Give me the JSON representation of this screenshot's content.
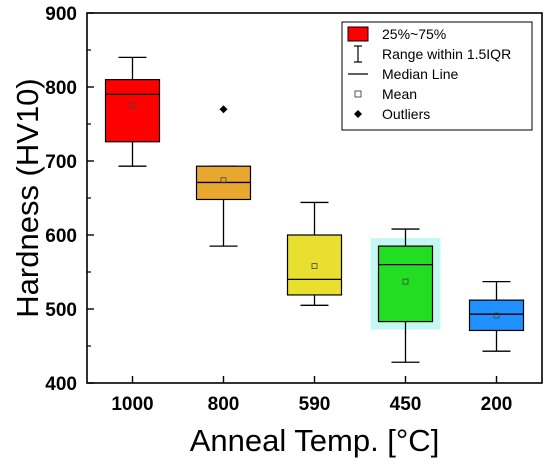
{
  "chart_data": {
    "type": "box",
    "xlabel": "Anneal Temp. [°C]",
    "ylabel": "Hardness (HV10)",
    "ylim": [
      400,
      900
    ],
    "yticks": [
      400,
      500,
      600,
      700,
      800,
      900
    ],
    "categories": [
      "1000",
      "800",
      "590",
      "450",
      "200"
    ],
    "boxes": [
      {
        "category": "1000",
        "whisker_low": 693,
        "q1": 726,
        "median": 790,
        "q3": 810,
        "whisker_high": 840,
        "mean": 775,
        "outliers": [],
        "color": "#ff0000",
        "halo": false
      },
      {
        "category": "800",
        "whisker_low": 585,
        "q1": 648,
        "median": 671,
        "q3": 693,
        "whisker_high": 693,
        "mean": 674,
        "outliers": [
          770
        ],
        "color": "#e8a830",
        "halo": false
      },
      {
        "category": "590",
        "whisker_low": 505,
        "q1": 519,
        "median": 540,
        "q3": 600,
        "whisker_high": 644,
        "mean": 558,
        "outliers": [],
        "color": "#e8df30",
        "halo": false
      },
      {
        "category": "450",
        "whisker_low": 428,
        "q1": 483,
        "median": 560,
        "q3": 585,
        "whisker_high": 608,
        "mean": 537,
        "outliers": [],
        "color": "#22dd22",
        "halo": true
      },
      {
        "category": "200",
        "whisker_low": 443,
        "q1": 471,
        "median": 493,
        "q3": 512,
        "whisker_high": 537,
        "mean": 491,
        "outliers": [],
        "color": "#1e90ff",
        "halo": false
      }
    ],
    "legend": {
      "position": "top-right",
      "items": [
        {
          "label": "25%~75%",
          "symbol": "box",
          "color": "#ff0000"
        },
        {
          "label": "Range within 1.5IQR",
          "symbol": "whisker"
        },
        {
          "label": "Median Line",
          "symbol": "line"
        },
        {
          "label": "Mean",
          "symbol": "open-square"
        },
        {
          "label": "Outliers",
          "symbol": "diamond"
        }
      ]
    }
  }
}
